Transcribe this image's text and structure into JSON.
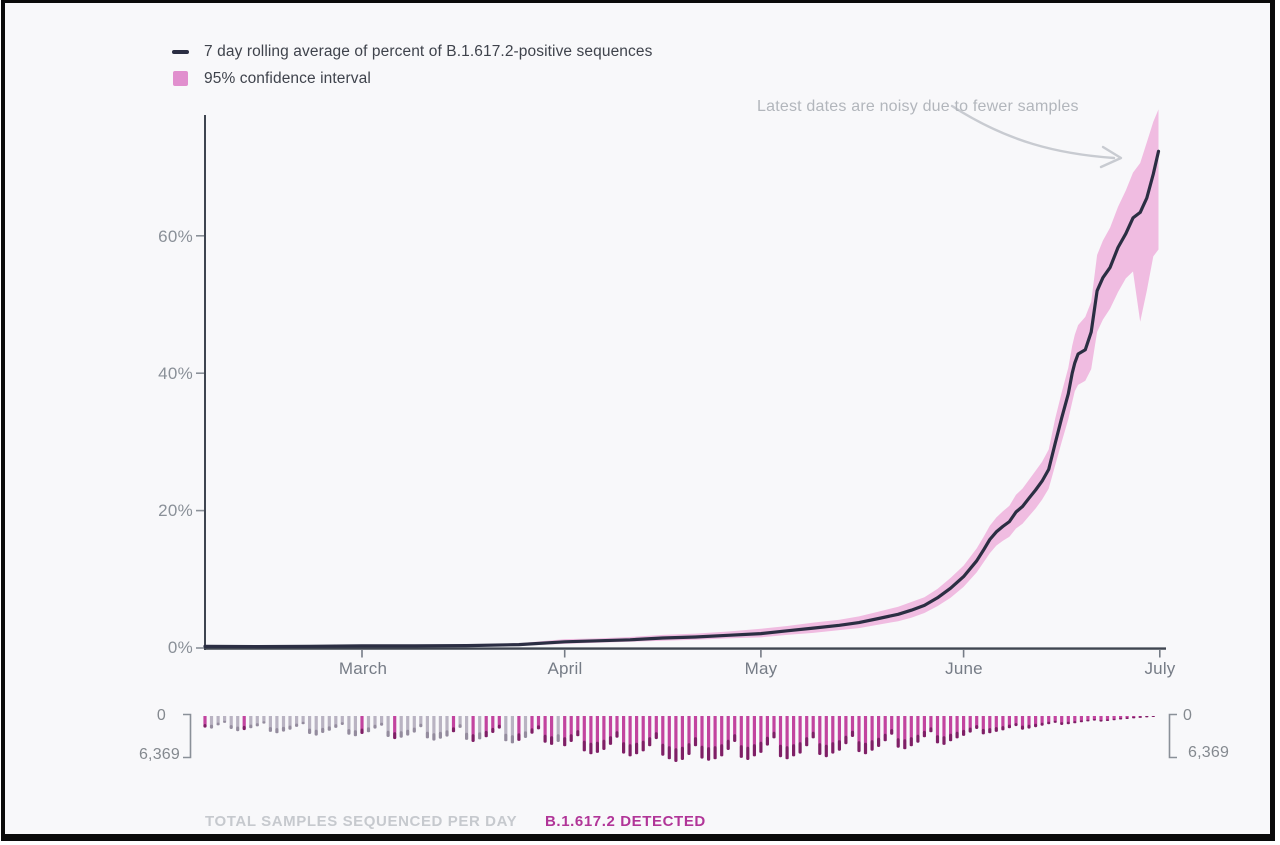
{
  "legend": {
    "items": [
      {
        "swatch": "line",
        "label": "7 day rolling average of percent of B.1.617.2-positive sequences"
      },
      {
        "swatch": "box",
        "label": "95% confidence interval"
      }
    ]
  },
  "annotation": {
    "text": "Latest dates are noisy due to fewer samples"
  },
  "footer": {
    "caption_total": "TOTAL SAMPLES SEQUENCED PER DAY",
    "caption_detected": "B.1.617.2 DETECTED"
  },
  "colors": {
    "background": "#f8f8fa",
    "frame": "#0a0a0a",
    "trend_line": "#2b2e43",
    "confidence_band": "#f0bce1",
    "legend_swatch_pink": "#e18fce",
    "axis": "#3f4550",
    "tick_text": "#8a9098",
    "annotation_text": "#b2b6bc",
    "arrow": "#c8cbd1",
    "bar_detected_body": "#c2449f",
    "bar_detected_tip": "#7f1f66",
    "bar_plain_body": "#b9b3c2",
    "bar_plain_tip": "#948c9e",
    "caption_total": "#c6c9ce",
    "caption_detected": "#b13598"
  },
  "chart_data": [
    {
      "type": "line",
      "title": "7 day rolling average of percent of B.1.617.2-positive sequences",
      "x_axis": {
        "unit": "day index (day 0 = early February)",
        "tick_labels": [
          "March",
          "April",
          "May",
          "June",
          "July"
        ],
        "tick_days": [
          24,
          55,
          85,
          116,
          146
        ]
      },
      "y_axis": {
        "tick_labels": [
          "0%",
          "20%",
          "40%",
          "60%"
        ],
        "tick_values": [
          0,
          20,
          40,
          60
        ],
        "ylim": [
          0,
          78
        ]
      },
      "legend_position": "top-left",
      "grid": false,
      "series": [
        {
          "name": "rolling_avg_pct",
          "points": [
            [
              0,
              0.25
            ],
            [
              8,
              0.2
            ],
            [
              16,
              0.25
            ],
            [
              24,
              0.3
            ],
            [
              32,
              0.3
            ],
            [
              40,
              0.35
            ],
            [
              48,
              0.5
            ],
            [
              55,
              0.9
            ],
            [
              60,
              1.05
            ],
            [
              65,
              1.2
            ],
            [
              70,
              1.45
            ],
            [
              75,
              1.6
            ],
            [
              80,
              1.85
            ],
            [
              85,
              2.1
            ],
            [
              89,
              2.5
            ],
            [
              93,
              2.9
            ],
            [
              97,
              3.3
            ],
            [
              100,
              3.7
            ],
            [
              103,
              4.3
            ],
            [
              106,
              4.9
            ],
            [
              108,
              5.5
            ],
            [
              110,
              6.2
            ],
            [
              112,
              7.3
            ],
            [
              114,
              8.7
            ],
            [
              116,
              10.4
            ],
            [
              118,
              12.7
            ],
            [
              119,
              14.2
            ],
            [
              120,
              15.8
            ],
            [
              121,
              16.9
            ],
            [
              122,
              17.7
            ],
            [
              123,
              18.4
            ],
            [
              124,
              19.8
            ],
            [
              125,
              20.6
            ],
            [
              126,
              21.8
            ],
            [
              127,
              23.0
            ],
            [
              128,
              24.3
            ],
            [
              129,
              26.0
            ],
            [
              130,
              29.8
            ],
            [
              131,
              33.5
            ],
            [
              132,
              37.0
            ],
            [
              132.6,
              40.0
            ],
            [
              133,
              41.5
            ],
            [
              133.5,
              42.8
            ],
            [
              134.6,
              43.4
            ],
            [
              135.5,
              46.0
            ],
            [
              136.4,
              52.0
            ],
            [
              137.3,
              53.9
            ],
            [
              138.4,
              55.4
            ],
            [
              139.6,
              58.3
            ],
            [
              140.8,
              60.3
            ],
            [
              141.9,
              62.6
            ],
            [
              143,
              63.4
            ],
            [
              144,
              65.5
            ],
            [
              145,
              69.0
            ],
            [
              145.8,
              72.3
            ]
          ]
        }
      ],
      "band": {
        "name": "95% confidence interval",
        "points": [
          [
            0,
            0.15,
            0.4
          ],
          [
            8,
            0.1,
            0.35
          ],
          [
            16,
            0.15,
            0.4
          ],
          [
            24,
            0.2,
            0.45
          ],
          [
            32,
            0.2,
            0.45
          ],
          [
            40,
            0.2,
            0.5
          ],
          [
            48,
            0.3,
            0.7
          ],
          [
            55,
            0.6,
            1.3
          ],
          [
            60,
            0.75,
            1.4
          ],
          [
            65,
            0.9,
            1.6
          ],
          [
            70,
            1.05,
            1.9
          ],
          [
            75,
            1.2,
            2.1
          ],
          [
            80,
            1.4,
            2.4
          ],
          [
            85,
            1.55,
            2.8
          ],
          [
            89,
            1.9,
            3.2
          ],
          [
            93,
            2.2,
            3.7
          ],
          [
            97,
            2.6,
            4.1
          ],
          [
            100,
            2.9,
            4.6
          ],
          [
            103,
            3.4,
            5.3
          ],
          [
            106,
            3.9,
            6.0
          ],
          [
            108,
            4.4,
            6.7
          ],
          [
            110,
            5.1,
            7.4
          ],
          [
            112,
            6.1,
            8.6
          ],
          [
            114,
            7.3,
            10.2
          ],
          [
            116,
            8.9,
            12.0
          ],
          [
            118,
            11.0,
            14.5
          ],
          [
            119,
            12.4,
            16.1
          ],
          [
            120,
            13.8,
            17.8
          ],
          [
            121,
            14.9,
            19.0
          ],
          [
            122,
            15.6,
            19.9
          ],
          [
            123,
            16.2,
            20.7
          ],
          [
            124,
            17.4,
            22.3
          ],
          [
            125,
            18.1,
            23.2
          ],
          [
            126,
            19.2,
            24.5
          ],
          [
            127,
            20.3,
            25.8
          ],
          [
            128,
            21.6,
            27.1
          ],
          [
            129,
            23.2,
            28.9
          ],
          [
            130,
            26.6,
            33.4
          ],
          [
            131,
            30.0,
            37.2
          ],
          [
            132,
            33.3,
            40.8
          ],
          [
            132.6,
            35.8,
            44.0
          ],
          [
            133,
            37.4,
            45.6
          ],
          [
            133.5,
            38.3,
            47.0
          ],
          [
            134.6,
            38.9,
            48.2
          ],
          [
            135.5,
            40.6,
            50.4
          ],
          [
            136.4,
            46.0,
            57.2
          ],
          [
            137.3,
            47.8,
            59.3
          ],
          [
            138.4,
            49.4,
            61.2
          ],
          [
            139.6,
            51.8,
            64.2
          ],
          [
            140.8,
            53.8,
            66.6
          ],
          [
            141.9,
            54.8,
            69.2
          ],
          [
            143,
            47.5,
            70.6
          ],
          [
            144,
            52.0,
            73.6
          ],
          [
            145,
            57.0,
            76.6
          ],
          [
            145.8,
            58.0,
            78.4
          ]
        ]
      }
    },
    {
      "type": "bar",
      "name": "total samples sequenced per day",
      "direction": "downward",
      "scale": {
        "zero_label": "0",
        "max_label": "6,369",
        "max_value": 6369
      },
      "values": [
        1600,
        1750,
        1300,
        950,
        1800,
        2100,
        1950,
        1700,
        1450,
        1050,
        2200,
        2400,
        2150,
        1900,
        1500,
        1150,
        2500,
        2700,
        2350,
        2050,
        1650,
        1250,
        2600,
        2800,
        2500,
        2250,
        1750,
        1350,
        2900,
        3200,
        3000,
        2700,
        2300,
        1550,
        3100,
        3400,
        3150,
        2850,
        2250,
        1650,
        3300,
        3600,
        3250,
        2950,
        2350,
        1750,
        3500,
        3800,
        3450,
        3050,
        2450,
        1850,
        3700,
        4000,
        3600,
        4200,
        3600,
        2800,
        4900,
        5300,
        5100,
        4700,
        4000,
        3000,
        5200,
        5600,
        5300,
        4900,
        4200,
        3200,
        5500,
        6000,
        6369,
        6100,
        5400,
        4200,
        5900,
        6200,
        6000,
        5600,
        4700,
        3600,
        5800,
        6100,
        5600,
        5100,
        4100,
        3100,
        5700,
        6000,
        5600,
        5200,
        4200,
        3100,
        5400,
        5700,
        5200,
        4800,
        3900,
        2900,
        5000,
        5300,
        4800,
        4300,
        3500,
        2600,
        4400,
        4600,
        4200,
        3700,
        2950,
        2250,
        3800,
        4000,
        3500,
        3100,
        2750,
        2300,
        1800,
        2550,
        2400,
        2200,
        2000,
        1700,
        1400,
        1900,
        1750,
        1550,
        1350,
        1150,
        950,
        1250,
        1150,
        1000,
        870,
        760,
        640,
        780,
        690,
        590,
        490,
        410,
        330,
        260,
        190,
        120
      ],
      "detected": [
        1,
        0,
        0,
        0,
        0,
        0,
        1,
        0,
        0,
        0,
        0,
        0,
        0,
        0,
        0,
        0,
        0,
        0,
        0,
        0,
        0,
        0,
        0,
        0,
        1,
        0,
        0,
        0,
        0,
        1,
        0,
        0,
        0,
        0,
        0,
        0,
        0,
        0,
        1,
        0,
        0,
        1,
        0,
        1,
        1,
        1,
        0,
        0,
        1,
        0,
        1,
        1,
        1,
        1,
        0,
        1,
        1,
        1,
        1,
        1,
        1,
        1,
        1,
        1,
        1,
        1,
        1,
        1,
        1,
        1,
        1,
        1,
        1,
        1,
        1,
        1,
        1,
        1,
        1,
        1,
        1,
        1,
        1,
        1,
        1,
        1,
        1,
        1,
        1,
        1,
        1,
        1,
        1,
        1,
        1,
        1,
        1,
        1,
        1,
        1,
        1,
        1,
        1,
        1,
        1,
        1,
        1,
        1,
        1,
        1,
        1,
        1,
        1,
        1,
        1,
        1,
        1,
        1,
        1,
        1,
        1,
        1,
        1,
        1,
        1,
        1,
        1,
        1,
        1,
        1,
        1,
        1,
        1,
        1,
        1,
        1,
        1,
        1,
        1,
        1,
        1,
        1,
        1,
        1,
        1,
        1
      ]
    }
  ]
}
